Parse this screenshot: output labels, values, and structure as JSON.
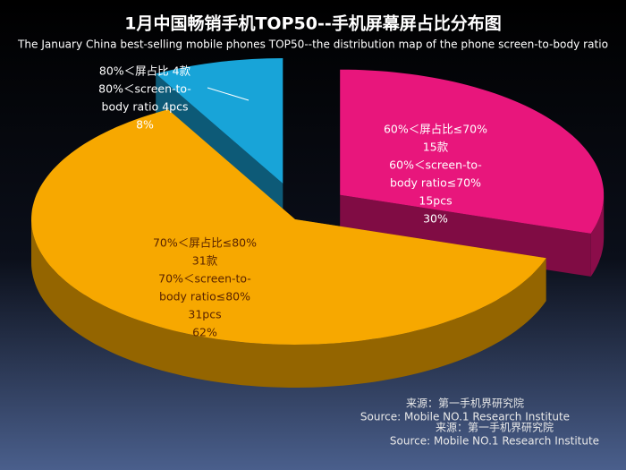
{
  "chart_data": {
    "type": "pie",
    "title": "1月中国畅销手机TOP50--手机屏幕屏占比分布图",
    "subtitle": "The January China best-selling mobile phones TOP50--the distribution map of the phone screen-to-body ratio",
    "slice_texts": [
      [
        "60%＜屏占比≤70%",
        "15款",
        "60%＜screen-to-",
        "body ratio≤70%",
        "15pcs"
      ],
      [
        "70%＜屏占比≤80%",
        "31款",
        "70%＜screen-to-",
        "body ratio≤80%",
        "31pcs"
      ],
      [
        "80%＜屏占比 4款",
        "80%＜screen-to-",
        "body ratio 4pcs"
      ]
    ],
    "values": [
      30,
      62,
      8
    ],
    "value_labels": [
      "30%",
      "62%",
      "8%"
    ],
    "colors": [
      "#e8167c",
      "#f7a800",
      "#18a4d8"
    ],
    "source": [
      "来源：第一手机界研究院",
      "Source: Mobile NO.1 Research Institute",
      "来源：第一手机界研究院",
      "Source: Mobile NO.1 Research Institute"
    ]
  }
}
